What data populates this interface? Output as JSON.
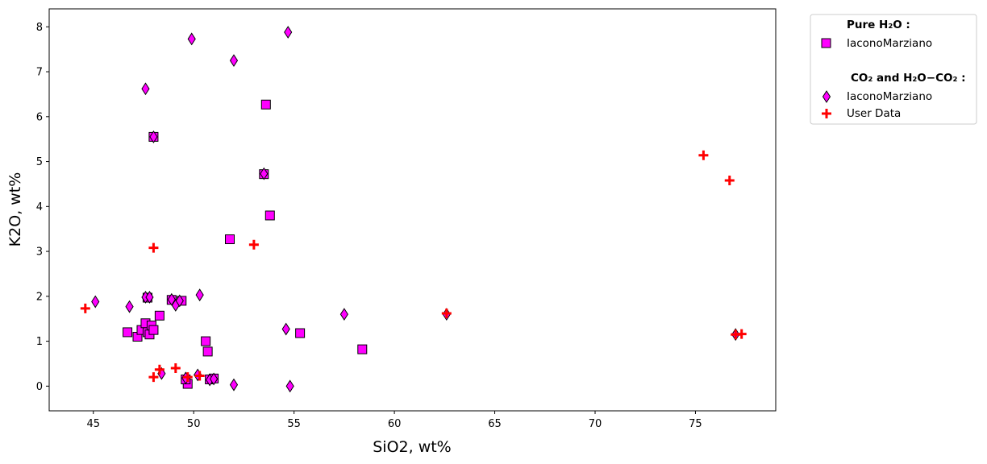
{
  "chart_data": {
    "type": "scatter",
    "title": "",
    "xlabel": "SiO2, wt%",
    "ylabel": "K2O, wt%",
    "xlim": [
      42.8,
      79.0
    ],
    "ylim": [
      -0.55,
      8.4
    ],
    "xticks": [
      45,
      50,
      55,
      60,
      65,
      70,
      75
    ],
    "yticks": [
      0,
      1,
      2,
      3,
      4,
      5,
      6,
      7,
      8
    ],
    "grid": false,
    "legend_placement": "outside-top-right",
    "legend": {
      "group1_heading": "Pure H₂O :",
      "group2_heading": "CO₂ and H₂O−CO₂ :"
    },
    "series": [
      {
        "name": "IaconoMarziano",
        "legend_group": "Pure H₂O",
        "marker": "square",
        "color": "#ff00ff",
        "edge": "#000000",
        "points": [
          [
            46.7,
            1.2
          ],
          [
            47.2,
            1.1
          ],
          [
            47.4,
            1.25
          ],
          [
            47.6,
            1.4
          ],
          [
            47.7,
            1.2
          ],
          [
            47.8,
            1.15
          ],
          [
            47.9,
            1.35
          ],
          [
            48.0,
            1.25
          ],
          [
            48.3,
            1.57
          ],
          [
            47.7,
            1.97
          ],
          [
            48.0,
            5.55
          ],
          [
            48.9,
            1.92
          ],
          [
            49.4,
            1.9
          ],
          [
            49.7,
            0.05
          ],
          [
            49.6,
            0.15
          ],
          [
            50.6,
            1.0
          ],
          [
            50.7,
            0.77
          ],
          [
            50.8,
            0.15
          ],
          [
            51.0,
            0.17
          ],
          [
            51.8,
            3.27
          ],
          [
            53.5,
            4.72
          ],
          [
            53.6,
            6.27
          ],
          [
            53.8,
            3.8
          ],
          [
            55.3,
            1.18
          ],
          [
            58.4,
            0.82
          ]
        ]
      },
      {
        "name": "IaconoMarziano",
        "legend_group": "CO₂ and H₂O−CO₂",
        "marker": "diamond",
        "color": "#ff00ff",
        "edge": "#000000",
        "points": [
          [
            45.1,
            1.88
          ],
          [
            46.8,
            1.77
          ],
          [
            47.6,
            6.62
          ],
          [
            47.6,
            1.98
          ],
          [
            47.8,
            1.98
          ],
          [
            48.0,
            5.55
          ],
          [
            48.4,
            0.28
          ],
          [
            48.9,
            1.93
          ],
          [
            49.1,
            1.8
          ],
          [
            49.3,
            1.9
          ],
          [
            49.6,
            0.18
          ],
          [
            49.9,
            7.73
          ],
          [
            50.2,
            0.25
          ],
          [
            50.3,
            2.03
          ],
          [
            50.8,
            0.14
          ],
          [
            51.0,
            0.16
          ],
          [
            52.0,
            7.25
          ],
          [
            52.0,
            0.03
          ],
          [
            53.5,
            4.73
          ],
          [
            54.6,
            1.27
          ],
          [
            54.7,
            7.88
          ],
          [
            54.8,
            0.0
          ],
          [
            57.5,
            1.6
          ],
          [
            62.6,
            1.6
          ],
          [
            77.0,
            1.15
          ]
        ]
      },
      {
        "name": "User Data",
        "legend_group": "CO₂ and H₂O−CO₂",
        "marker": "plus",
        "color": "#ff0000",
        "points": [
          [
            44.6,
            1.73
          ],
          [
            48.0,
            3.08
          ],
          [
            48.0,
            0.2
          ],
          [
            48.3,
            0.37
          ],
          [
            49.1,
            0.4
          ],
          [
            49.7,
            0.2
          ],
          [
            50.3,
            0.23
          ],
          [
            53.0,
            3.15
          ],
          [
            62.6,
            1.62
          ],
          [
            75.4,
            5.14
          ],
          [
            76.7,
            4.58
          ],
          [
            77.0,
            1.15
          ],
          [
            77.3,
            1.16
          ]
        ]
      }
    ]
  }
}
